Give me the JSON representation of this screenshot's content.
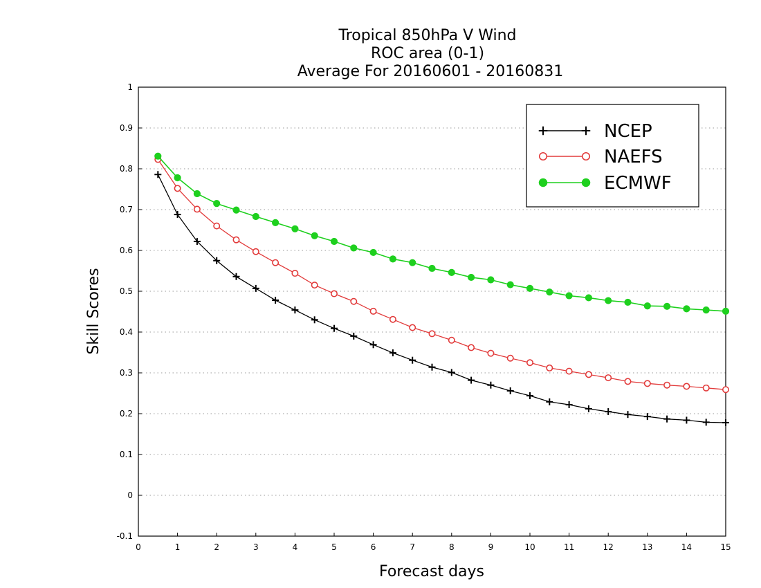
{
  "chart_data": {
    "type": "line",
    "title_lines": [
      "Tropical 850hPa V Wind",
      "ROC area (0-1)",
      "Average For 20160601 - 20160831"
    ],
    "xlabel": "Forecast days",
    "ylabel": "Skill Scores",
    "xlim": [
      0,
      15
    ],
    "ylim": [
      -0.1,
      1
    ],
    "xticks": [
      0,
      1,
      2,
      3,
      4,
      5,
      6,
      7,
      8,
      9,
      10,
      11,
      12,
      13,
      14,
      15
    ],
    "yticks": [
      -0.1,
      0,
      0.1,
      0.2,
      0.3,
      0.4,
      0.5,
      0.6,
      0.7,
      0.8,
      0.9,
      1
    ],
    "ytick_labels": [
      "-0.1",
      "0",
      "0.1",
      "0.2",
      "0.3",
      "0.4",
      "0.5",
      "0.6",
      "0.7",
      "0.8",
      "0.9",
      "1"
    ],
    "grid": "horizontal-dotted",
    "legend_position": "top-right",
    "x": [
      0.5,
      1,
      1.5,
      2,
      2.5,
      3,
      3.5,
      4,
      4.5,
      5,
      5.5,
      6,
      6.5,
      7,
      7.5,
      8,
      8.5,
      9,
      9.5,
      10,
      10.5,
      11,
      11.5,
      12,
      12.5,
      13,
      13.5,
      14,
      14.5,
      15
    ],
    "series": [
      {
        "name": "NCEP",
        "color": "#000000",
        "marker": "plus",
        "values": [
          0.786,
          0.688,
          0.622,
          0.575,
          0.536,
          0.507,
          0.478,
          0.454,
          0.43,
          0.409,
          0.39,
          0.369,
          0.349,
          0.331,
          0.314,
          0.301,
          0.282,
          0.27,
          0.256,
          0.244,
          0.229,
          0.222,
          0.212,
          0.205,
          0.198,
          0.193,
          0.187,
          0.184,
          0.179,
          0.178
        ]
      },
      {
        "name": "NAEFS",
        "color": "#e23b3b",
        "marker": "open-circle",
        "values": [
          0.823,
          0.752,
          0.701,
          0.66,
          0.626,
          0.597,
          0.57,
          0.544,
          0.515,
          0.494,
          0.475,
          0.451,
          0.431,
          0.411,
          0.396,
          0.38,
          0.362,
          0.348,
          0.336,
          0.325,
          0.312,
          0.304,
          0.296,
          0.288,
          0.279,
          0.274,
          0.27,
          0.267,
          0.263,
          0.259
        ]
      },
      {
        "name": "ECMWF",
        "color": "#1ed01e",
        "marker": "filled-circle",
        "values": [
          0.831,
          0.778,
          0.739,
          0.715,
          0.699,
          0.683,
          0.668,
          0.653,
          0.636,
          0.622,
          0.606,
          0.595,
          0.579,
          0.57,
          0.556,
          0.546,
          0.534,
          0.528,
          0.516,
          0.507,
          0.498,
          0.489,
          0.484,
          0.477,
          0.473,
          0.464,
          0.463,
          0.457,
          0.454,
          0.451
        ]
      }
    ]
  }
}
